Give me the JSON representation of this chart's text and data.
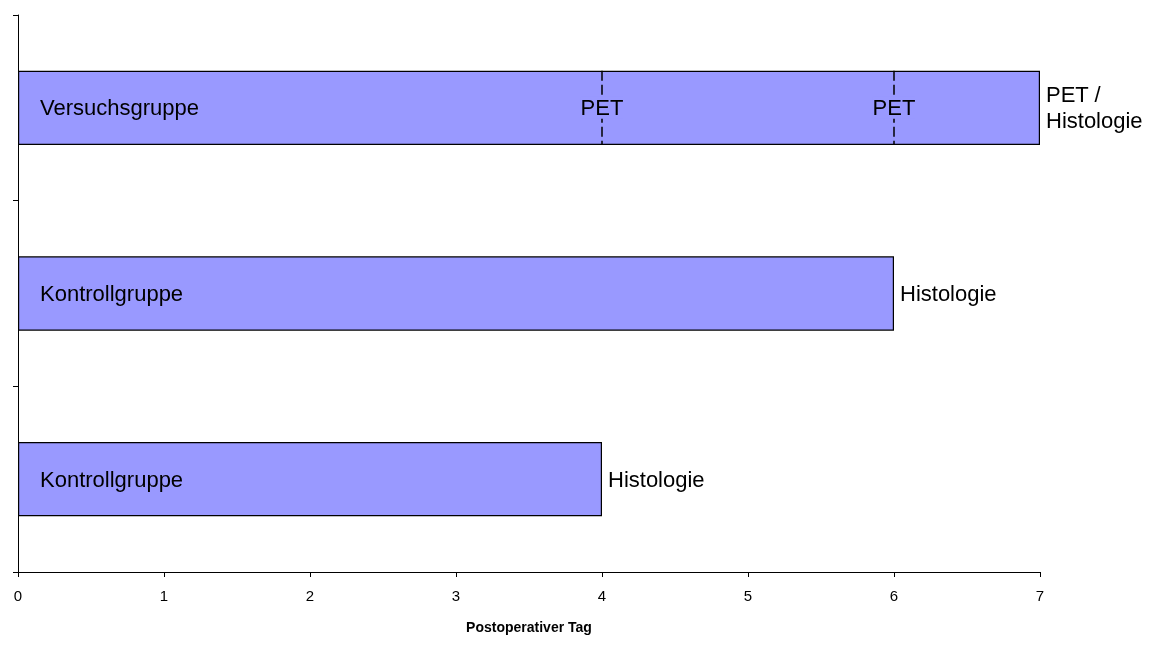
{
  "chart_data": {
    "type": "bar",
    "orientation": "horizontal",
    "xlabel": "Postoperativer Tag",
    "categories": [
      "Versuchsgruppe",
      "Kontrollgruppe",
      "Kontrollgruppe"
    ],
    "values": [
      7,
      6,
      4
    ],
    "color": "#9999ff",
    "value_labels": [
      "PET / Histologie",
      "Histologie",
      "Histologie"
    ],
    "annotations": [
      {
        "text": "PET",
        "x": 4,
        "y": "Versuchsgruppe"
      },
      {
        "text": "PET",
        "x": 6,
        "y": "Versuchsgruppe"
      }
    ],
    "xlim": [
      0,
      7
    ],
    "xticks": [
      0,
      1,
      2,
      3,
      4,
      5,
      6,
      7
    ],
    "grid": false
  }
}
